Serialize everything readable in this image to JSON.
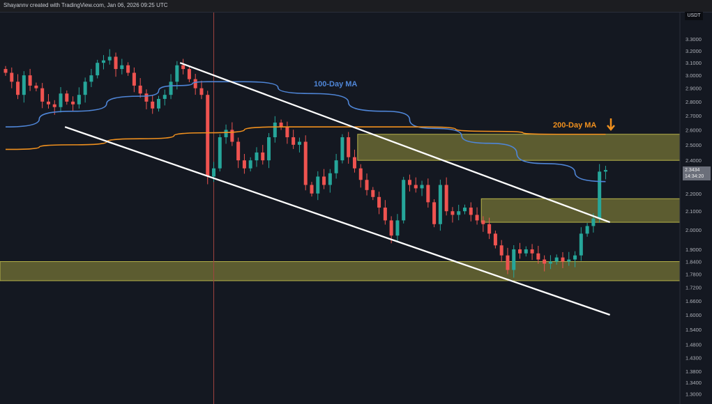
{
  "header": {
    "credit": "Shayannv created with TradingView.com, Jan 06, 2026 09:25 UTC"
  },
  "axis": {
    "currency": "USDT"
  },
  "last_price": {
    "value": "2.3434",
    "countdown": "14:34:20"
  },
  "annotations": {
    "ma100_label": "100-Day MA",
    "ma200_label": "200-Day MA",
    "arrow_icon": "arrow-down-icon"
  },
  "colors": {
    "background": "#141821",
    "up": "#26a69a",
    "down": "#ef5350",
    "ma100": "#4f86d8",
    "ma200": "#f0901e",
    "zone": "#8c8a3a",
    "trendline": "#ffffff"
  },
  "chart_data": {
    "type": "candlestick",
    "scale": "log",
    "ylim": [
      1.27,
      3.42
    ],
    "y_ticks": [
      "3.3000",
      "3.2000",
      "3.1000",
      "3.0000",
      "2.9000",
      "2.8000",
      "2.7000",
      "2.6000",
      "2.5000",
      "2.4000",
      "2.2000",
      "2.1000",
      "2.0000",
      "1.9000",
      "1.8400",
      "1.7800",
      "1.7200",
      "1.6600",
      "1.6000",
      "1.5400",
      "1.4800",
      "1.4300",
      "1.3800",
      "1.3400",
      "1.3000"
    ],
    "grid": false,
    "closes": [
      3.02,
      2.95,
      2.85,
      3.0,
      2.92,
      2.9,
      2.8,
      2.78,
      2.76,
      2.86,
      2.8,
      2.78,
      2.85,
      2.95,
      3.0,
      3.1,
      3.12,
      3.15,
      3.05,
      3.08,
      3.02,
      2.92,
      2.86,
      2.8,
      2.75,
      2.82,
      2.85,
      2.95,
      3.08,
      3.05,
      2.97,
      2.9,
      2.85,
      2.3,
      2.35,
      2.55,
      2.6,
      2.52,
      2.4,
      2.35,
      2.4,
      2.45,
      2.4,
      2.55,
      2.65,
      2.62,
      2.55,
      2.5,
      2.52,
      2.25,
      2.2,
      2.3,
      2.25,
      2.32,
      2.4,
      2.55,
      2.42,
      2.35,
      2.28,
      2.22,
      2.18,
      2.12,
      2.05,
      1.97,
      2.05,
      2.28,
      2.25,
      2.23,
      2.25,
      2.15,
      2.03,
      2.25,
      2.1,
      2.08,
      2.1,
      2.12,
      2.08,
      2.05,
      2.03,
      1.98,
      1.92,
      1.87,
      1.8,
      1.9,
      1.88,
      1.9,
      1.88,
      1.85,
      1.83,
      1.84,
      1.86,
      1.84,
      1.85,
      1.87,
      1.98,
      2.02,
      2.06,
      2.33,
      2.34
    ],
    "ma100": [
      [
        0,
        2.62
      ],
      [
        11,
        2.73
      ],
      [
        22,
        2.84
      ],
      [
        28,
        2.92
      ],
      [
        33,
        2.95
      ],
      [
        39,
        2.95
      ],
      [
        50,
        2.86
      ],
      [
        62,
        2.73
      ],
      [
        70,
        2.61
      ],
      [
        79,
        2.51
      ],
      [
        88,
        2.38
      ],
      [
        98,
        2.27
      ]
    ],
    "ma200": [
      [
        0,
        2.47
      ],
      [
        11,
        2.5
      ],
      [
        22,
        2.54
      ],
      [
        33,
        2.58
      ],
      [
        45,
        2.62
      ],
      [
        56,
        2.62
      ],
      [
        68,
        2.62
      ],
      [
        79,
        2.59
      ],
      [
        90,
        2.57
      ],
      [
        98,
        2.57
      ]
    ],
    "zones": [
      {
        "from_index": 57.5,
        "top": 2.57,
        "bottom": 2.4
      },
      {
        "from_index": 77.7,
        "top": 2.17,
        "bottom": 2.04
      },
      {
        "from_index": -1,
        "top": 1.84,
        "bottom": 1.75
      }
    ],
    "trendlines": [
      {
        "from": [
          28.5,
          3.1
        ],
        "to": [
          98.7,
          2.04
        ]
      },
      {
        "from": [
          9.7,
          2.62
        ],
        "to": [
          98.7,
          1.6
        ]
      }
    ],
    "marker_index": 34
  }
}
